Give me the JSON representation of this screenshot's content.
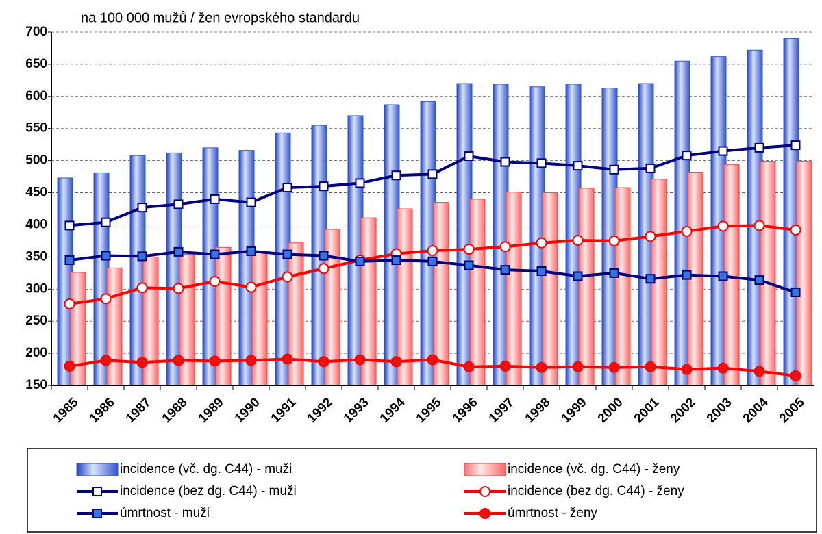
{
  "chart_data": {
    "type": "bar-line",
    "subtitle": "na 100 000 mužů / žen evropského standardu",
    "categories": [
      "1985",
      "1986",
      "1987",
      "1988",
      "1989",
      "1990",
      "1991",
      "1992",
      "1993",
      "1994",
      "1995",
      "1996",
      "1997",
      "1998",
      "1999",
      "2000",
      "2001",
      "2002",
      "2003",
      "2004",
      "2005"
    ],
    "ylim": [
      150,
      700
    ],
    "yticks": [
      150,
      200,
      250,
      300,
      350,
      400,
      450,
      500,
      550,
      600,
      650,
      700
    ],
    "grid": true,
    "series": [
      {
        "name": "incidence (vč. dg. C44) - muži",
        "type": "bar",
        "color": "#3355cc",
        "values": [
          473,
          481,
          508,
          512,
          520,
          516,
          543,
          555,
          570,
          587,
          592,
          620,
          619,
          615,
          619,
          613,
          620,
          655,
          662,
          672,
          690
        ]
      },
      {
        "name": "incidence (vč. dg. C44) - ženy",
        "type": "bar",
        "color": "#ff4444",
        "values": [
          326,
          333,
          350,
          354,
          365,
          357,
          372,
          393,
          411,
          425,
          435,
          440,
          451,
          450,
          457,
          458,
          471,
          482,
          494,
          499,
          499
        ]
      },
      {
        "name": "incidence (bez dg. C44) - muži",
        "type": "line",
        "color": "#000080",
        "marker": "square",
        "marker_fill": "#ffffff",
        "values": [
          399,
          404,
          427,
          432,
          440,
          435,
          458,
          460,
          465,
          477,
          479,
          507,
          498,
          496,
          492,
          486,
          488,
          508,
          515,
          520,
          524
        ]
      },
      {
        "name": "incidence (bez dg. C44) - ženy",
        "type": "line",
        "color": "#ff0000",
        "marker": "circle",
        "marker_fill": "#ffffff",
        "values": [
          277,
          285,
          302,
          301,
          312,
          303,
          319,
          332,
          345,
          355,
          360,
          362,
          366,
          372,
          376,
          375,
          382,
          390,
          398,
          399,
          392
        ]
      },
      {
        "name": "úmrtnost - muži",
        "type": "line",
        "color": "#000080",
        "marker": "square",
        "marker_fill": "#3377dd",
        "values": [
          345,
          352,
          351,
          358,
          354,
          359,
          354,
          352,
          343,
          345,
          343,
          337,
          330,
          328,
          320,
          325,
          316,
          322,
          320,
          314,
          295
        ]
      },
      {
        "name": "úmrtnost - ženy",
        "type": "line",
        "color": "#ff0000",
        "marker": "circle",
        "marker_fill": "#ee1111",
        "values": [
          180,
          189,
          186,
          189,
          188,
          189,
          191,
          187,
          190,
          187,
          190,
          179,
          180,
          178,
          179,
          178,
          179,
          175,
          177,
          172,
          165
        ]
      }
    ]
  }
}
